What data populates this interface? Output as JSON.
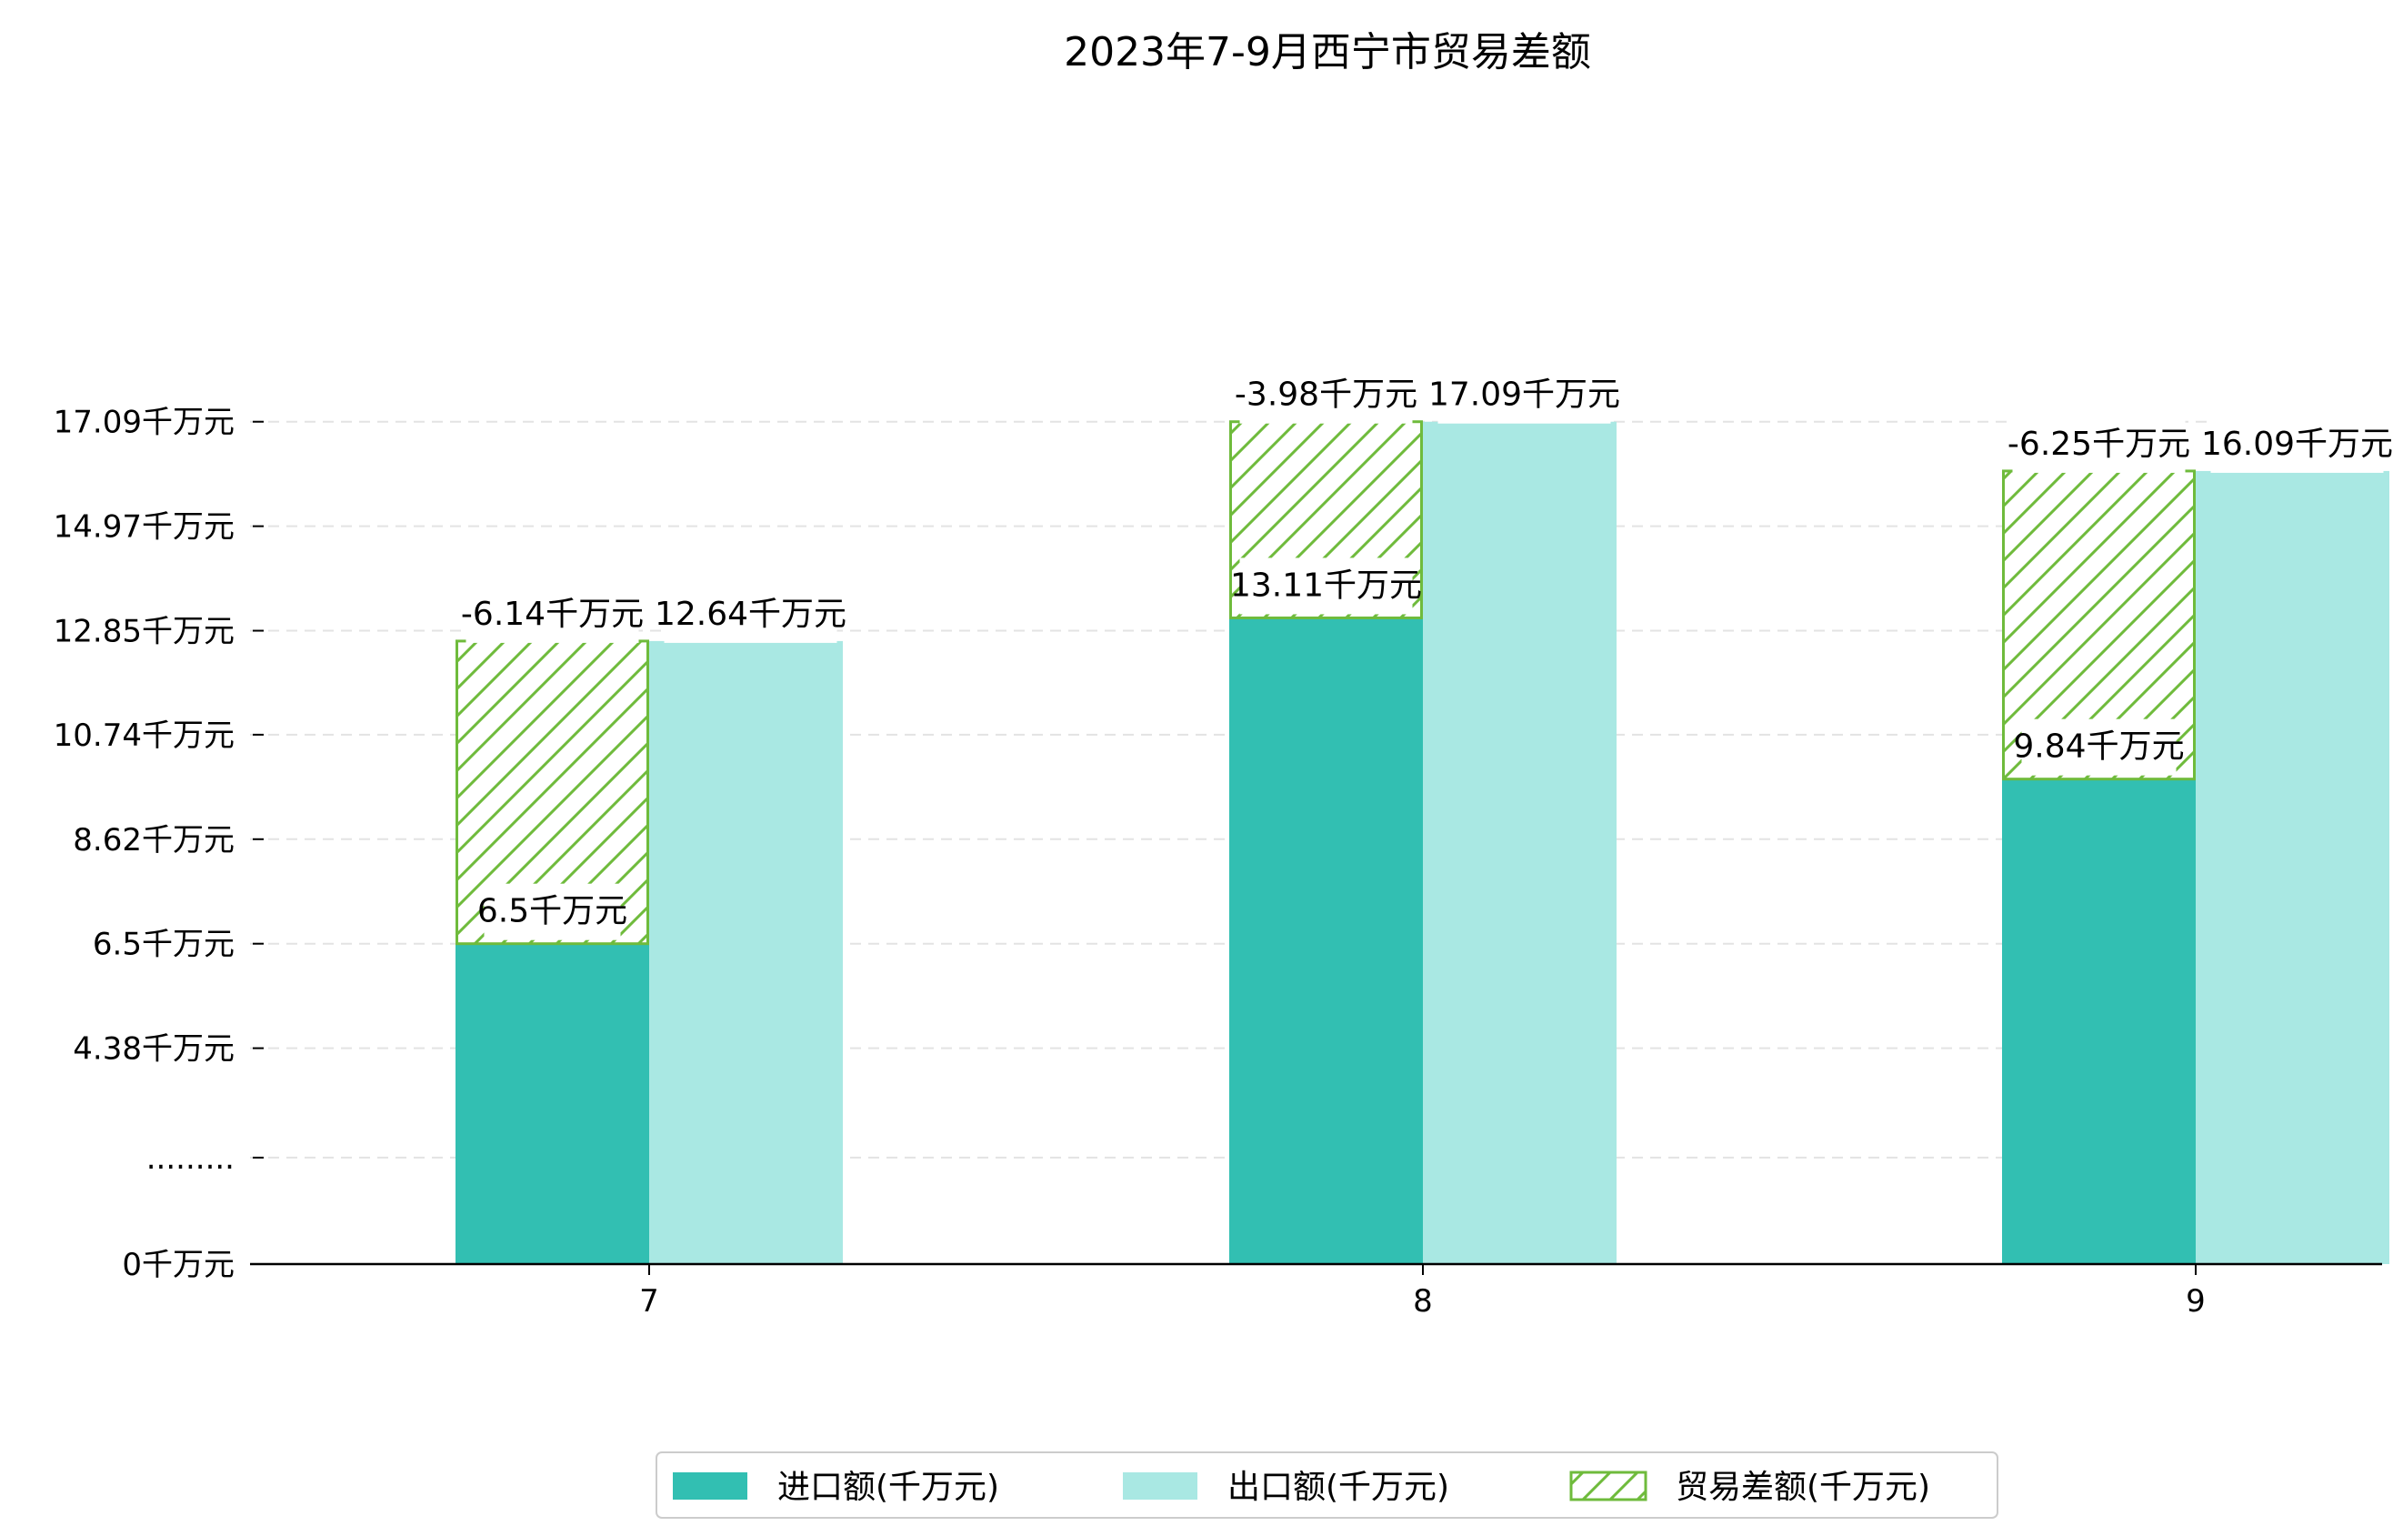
{
  "chart_data": {
    "type": "bar",
    "title": "2023年7-9月西宁市贸易差额",
    "categories": [
      "7",
      "8",
      "9"
    ],
    "series": [
      {
        "name": "进口额(千万元)",
        "values": [
          6.5,
          13.11,
          9.84
        ],
        "labels": [
          "6.5千万元",
          "13.11千万元",
          "9.84千万元"
        ],
        "color": "#32bfb2"
      },
      {
        "name": "出口额(千万元)",
        "values": [
          12.64,
          17.09,
          16.09
        ],
        "labels": [
          "12.64千万元",
          "17.09千万元",
          "16.09千万元"
        ],
        "color": "#a9e8e3"
      },
      {
        "name": "贸易差额(千万元)",
        "values": [
          -6.14,
          -3.98,
          -6.25
        ],
        "labels": [
          "-6.14千万元",
          "-3.98千万元",
          "-6.25千万元"
        ],
        "color": "#6fbb3c",
        "hatch": true
      }
    ],
    "y_ticks": [
      {
        "value": 0,
        "label": "0千万元"
      },
      {
        "value": 2.16,
        "label": "........."
      },
      {
        "value": 4.38,
        "label": "4.38千万元"
      },
      {
        "value": 6.5,
        "label": "6.5千万元"
      },
      {
        "value": 8.62,
        "label": "8.62千万元"
      },
      {
        "value": 10.74,
        "label": "10.74千万元"
      },
      {
        "value": 12.85,
        "label": "12.85千万元"
      },
      {
        "value": 14.97,
        "label": "14.97千万元"
      },
      {
        "value": 17.09,
        "label": "17.09千万元"
      }
    ],
    "ylim": [
      0,
      17.5
    ],
    "grid": "horizontal dashed",
    "legend_position": "bottom-center"
  }
}
